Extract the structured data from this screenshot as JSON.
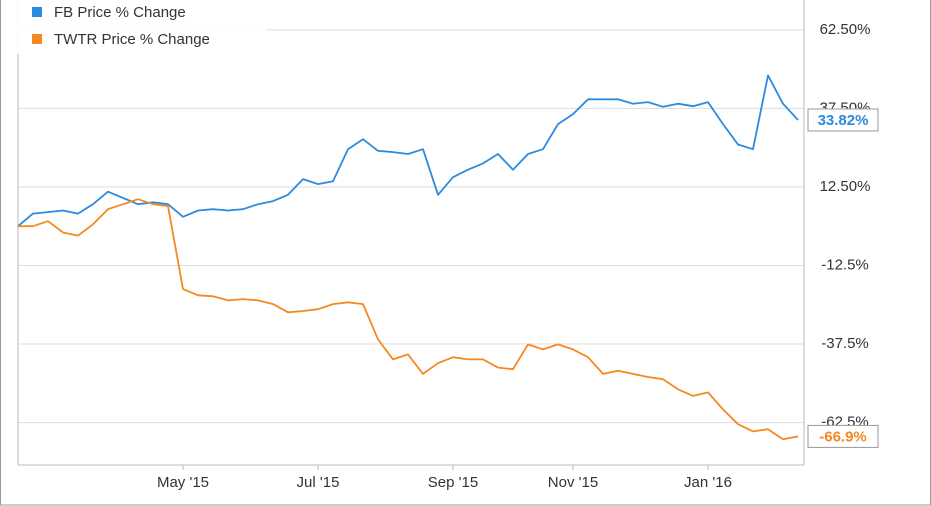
{
  "chart_data": {
    "type": "line",
    "categories": [
      null,
      null,
      null,
      null,
      null,
      null,
      null,
      null,
      null,
      null,
      null,
      "May '15",
      null,
      null,
      null,
      null,
      null,
      null,
      null,
      null,
      "Jul '15",
      null,
      null,
      null,
      null,
      null,
      null,
      null,
      null,
      "Sep '15",
      null,
      null,
      null,
      null,
      null,
      null,
      null,
      "Nov '15",
      null,
      null,
      null,
      null,
      null,
      null,
      null,
      null,
      "Jan '16",
      null,
      null,
      null,
      null,
      null,
      null
    ],
    "series": [
      {
        "name": "FB Price % Change",
        "color": "#2b8be0",
        "values": [
          0,
          4,
          4.5,
          5,
          4,
          7,
          11,
          9,
          7,
          7.6,
          7,
          3,
          5,
          5.4,
          5,
          5.4,
          7,
          8,
          10,
          15,
          13.4,
          14.3,
          24.5,
          27.7,
          24,
          23.6,
          23,
          24.5,
          10,
          15.6,
          18,
          20,
          23,
          18,
          23,
          24.5,
          32.5,
          35.7,
          40.4,
          40.4,
          40.4,
          39,
          39.5,
          38,
          39,
          38.2,
          39.5,
          32.5,
          26,
          24.5,
          48,
          39,
          33.82
        ],
        "value_labels": [
          null,
          null,
          null,
          null,
          null,
          null,
          null,
          null,
          null,
          null,
          null,
          null,
          null,
          null,
          null,
          null,
          null,
          null,
          null,
          null,
          null,
          null,
          null,
          null,
          null,
          null,
          null,
          null,
          null,
          null,
          null,
          null,
          null,
          null,
          null,
          null,
          null,
          null,
          null,
          null,
          null,
          null,
          null,
          null,
          null,
          null,
          null,
          null,
          null,
          null,
          null,
          null,
          "33.82%"
        ]
      },
      {
        "name": "TWTR Price % Change",
        "color": "#f5891f",
        "values": [
          0,
          0,
          1.6,
          -2,
          -3,
          0.6,
          5.4,
          7,
          8.6,
          7,
          6.4,
          -20,
          -22,
          -22.3,
          -23.6,
          -23.2,
          -23.6,
          -24.8,
          -27.4,
          -27,
          -26.4,
          -24.8,
          -24.2,
          -24.8,
          -36,
          -42.4,
          -40.8,
          -47,
          -43.6,
          -41.7,
          -42.4,
          -42.4,
          -45,
          -45.5,
          -37.6,
          -39.2,
          -37.6,
          -39.2,
          -41.7,
          -47,
          -46,
          -47,
          -48,
          -48.7,
          -51.9,
          -54,
          -52.9,
          -58.3,
          -63,
          -65.3,
          -64.6,
          -67.8,
          -66.9
        ],
        "value_labels": [
          null,
          null,
          null,
          null,
          null,
          null,
          null,
          null,
          null,
          null,
          null,
          null,
          null,
          null,
          null,
          null,
          null,
          null,
          null,
          null,
          null,
          null,
          null,
          null,
          null,
          null,
          null,
          null,
          null,
          null,
          null,
          null,
          null,
          null,
          null,
          null,
          null,
          null,
          null,
          null,
          null,
          null,
          null,
          null,
          null,
          null,
          null,
          null,
          null,
          null,
          null,
          null,
          "-66.9%"
        ]
      }
    ],
    "ylim": [
      -76,
      72
    ],
    "yticks": [
      {
        "value": 62.5,
        "label": "62.50%"
      },
      {
        "value": 37.5,
        "label": "37.50%"
      },
      {
        "value": 12.5,
        "label": "12.50%"
      },
      {
        "value": -12.5,
        "label": "-12.5%"
      },
      {
        "value": -37.5,
        "label": "-37.5%"
      },
      {
        "value": -62.5,
        "label": "-62.5%"
      }
    ],
    "grid": true,
    "legend": "top-left"
  }
}
